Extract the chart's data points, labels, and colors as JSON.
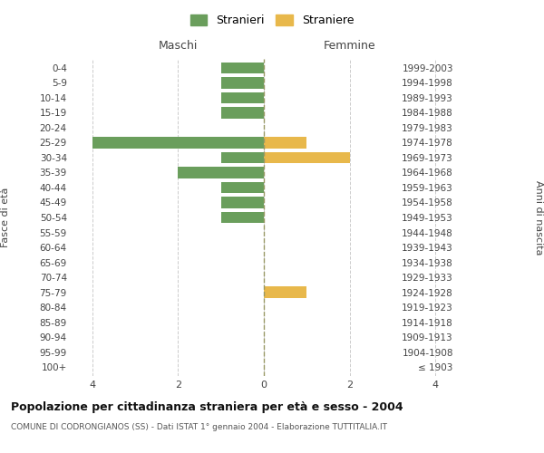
{
  "age_groups": [
    "100+",
    "95-99",
    "90-94",
    "85-89",
    "80-84",
    "75-79",
    "70-74",
    "65-69",
    "60-64",
    "55-59",
    "50-54",
    "45-49",
    "40-44",
    "35-39",
    "30-34",
    "25-29",
    "20-24",
    "15-19",
    "10-14",
    "5-9",
    "0-4"
  ],
  "birth_years": [
    "≤ 1903",
    "1904-1908",
    "1909-1913",
    "1914-1918",
    "1919-1923",
    "1924-1928",
    "1929-1933",
    "1934-1938",
    "1939-1943",
    "1944-1948",
    "1949-1953",
    "1954-1958",
    "1959-1963",
    "1964-1968",
    "1969-1973",
    "1974-1978",
    "1979-1983",
    "1984-1988",
    "1989-1993",
    "1994-1998",
    "1999-2003"
  ],
  "males": [
    0,
    0,
    0,
    0,
    0,
    0,
    0,
    0,
    0,
    0,
    -1,
    -1,
    -1,
    -2,
    -1,
    -4,
    0,
    -1,
    -1,
    -1,
    -1
  ],
  "females": [
    0,
    0,
    0,
    0,
    0,
    1,
    0,
    0,
    0,
    0,
    0,
    0,
    0,
    0,
    2,
    1,
    0,
    0,
    0,
    0,
    0
  ],
  "male_color": "#6a9e5c",
  "female_color": "#e8b84b",
  "male_label": "Stranieri",
  "female_label": "Straniere",
  "xlim": [
    -4.5,
    4.5
  ],
  "xticks": [
    -4,
    -2,
    0,
    2,
    4
  ],
  "xlabel_maschi": "Maschi",
  "xlabel_femmine": "Femmine",
  "ylabel_left": "Fasce di età",
  "ylabel_right": "Anni di nascita",
  "title": "Popolazione per cittadinanza straniera per età e sesso - 2004",
  "subtitle": "COMUNE DI CODRONGIANOS (SS) - Dati ISTAT 1° gennaio 2004 - Elaborazione TUTTITALIA.IT",
  "bg_color": "#ffffff",
  "grid_color": "#cccccc",
  "bar_height": 0.75
}
